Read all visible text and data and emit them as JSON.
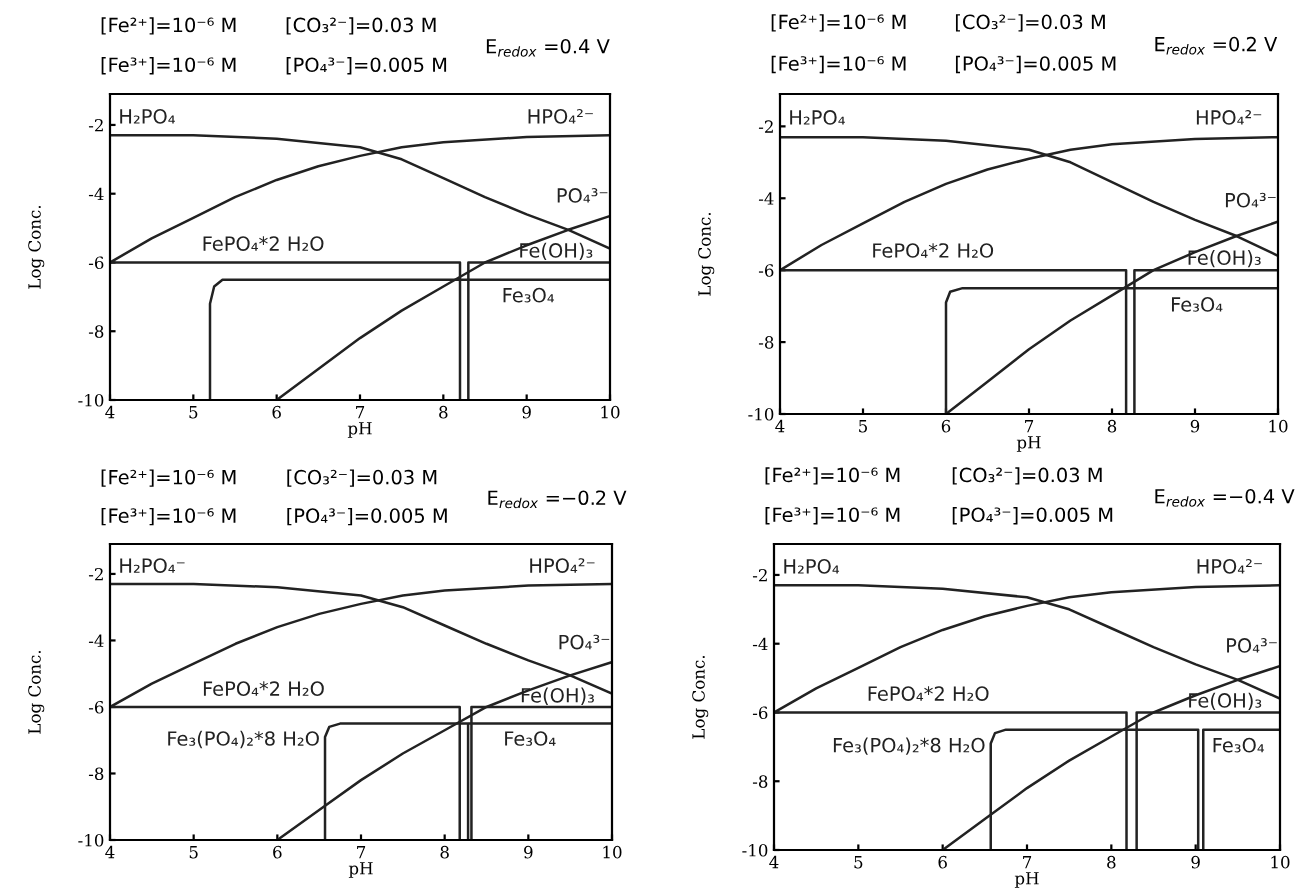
{
  "chart_data": [
    {
      "type": "line",
      "xlabel": "pH",
      "ylabel": "Log Conc.",
      "xlim": [
        4,
        10
      ],
      "ylim": [
        -10,
        -1.1
      ],
      "xticks": [
        4,
        5,
        6,
        7,
        8,
        9,
        10
      ],
      "yticks": [
        -10,
        -8,
        -6,
        -4,
        -2
      ],
      "series": [
        {
          "name": "H₂PO₄",
          "color": "#222222",
          "x": [
            4,
            5,
            6,
            7,
            7.5,
            8,
            8.5,
            9,
            9.5,
            10
          ],
          "values": [
            -2.3,
            -2.3,
            -2.4,
            -2.65,
            -3.0,
            -3.55,
            -4.1,
            -4.6,
            -5.05,
            -5.6
          ]
        },
        {
          "name": "HPO₄²⁻",
          "color": "#222222",
          "x": [
            4,
            4.5,
            5,
            5.5,
            6,
            6.5,
            7,
            7.5,
            8,
            9,
            10
          ],
          "values": [
            -6.0,
            -5.3,
            -4.7,
            -4.1,
            -3.6,
            -3.2,
            -2.9,
            -2.65,
            -2.5,
            -2.35,
            -2.3
          ]
        },
        {
          "name": "PO₄³⁻",
          "color": "#222222",
          "x": [
            6,
            6.5,
            7,
            7.5,
            8,
            8.5,
            9,
            9.5,
            10
          ],
          "values": [
            -10,
            -9.1,
            -8.2,
            -7.4,
            -6.7,
            -6.0,
            -5.5,
            -5.05,
            -4.65
          ]
        },
        {
          "name": "FePO₄*2 H₂O",
          "color": "#222222",
          "x": [
            4,
            8.2,
            8.2
          ],
          "values": [
            -6,
            -6,
            -10
          ]
        },
        {
          "name": "Fe(OH)₃",
          "color": "#222222",
          "x": [
            8.3,
            8.3,
            10
          ],
          "values": [
            -10,
            -6,
            -6
          ]
        },
        {
          "name": "Fe₃O₄",
          "color": "#222222",
          "x": [
            5.2,
            5.2,
            5.25,
            5.35,
            10
          ],
          "values": [
            -10,
            -7.2,
            -6.7,
            -6.5,
            -6.5
          ]
        }
      ],
      "annotations": [
        "[Fe²⁺]=10⁻⁶ M",
        "[Fe³⁺]=10⁻⁶ M",
        "[CO₃²⁻]=0.03 M",
        "[PO₄³⁻]=0.005 M",
        "E$_{redox}$ =0.4 V"
      ]
    },
    {
      "type": "line",
      "xlabel": "pH",
      "ylabel": "Log Conc.",
      "xlim": [
        4,
        10
      ],
      "ylim": [
        -10,
        -1.1
      ],
      "xticks": [
        4,
        5,
        6,
        7,
        8,
        9,
        10
      ],
      "yticks": [
        -10,
        -8,
        -6,
        -4,
        -2
      ],
      "series": [
        {
          "name": "H₂PO₄",
          "color": "#222222",
          "x": [
            4,
            5,
            6,
            7,
            7.5,
            8,
            8.5,
            9,
            9.5,
            10
          ],
          "values": [
            -2.3,
            -2.3,
            -2.4,
            -2.65,
            -3.0,
            -3.55,
            -4.1,
            -4.6,
            -5.05,
            -5.6
          ]
        },
        {
          "name": "HPO₄²⁻",
          "color": "#222222",
          "x": [
            4,
            4.5,
            5,
            5.5,
            6,
            6.5,
            7,
            7.5,
            8,
            9,
            10
          ],
          "values": [
            -6.0,
            -5.3,
            -4.7,
            -4.1,
            -3.6,
            -3.2,
            -2.9,
            -2.65,
            -2.5,
            -2.35,
            -2.3
          ]
        },
        {
          "name": "PO₄³⁻",
          "color": "#222222",
          "x": [
            6,
            6.5,
            7,
            7.5,
            8,
            8.5,
            9,
            9.5,
            10
          ],
          "values": [
            -10,
            -9.1,
            -8.2,
            -7.4,
            -6.7,
            -6.0,
            -5.5,
            -5.05,
            -4.65
          ]
        },
        {
          "name": "FePO₄*2 H₂O",
          "color": "#222222",
          "x": [
            4,
            8.17,
            8.17
          ],
          "values": [
            -6,
            -6,
            -10
          ]
        },
        {
          "name": "Fe(OH)₃",
          "color": "#222222",
          "x": [
            8.27,
            8.27,
            10
          ],
          "values": [
            -10,
            -6,
            -6
          ]
        },
        {
          "name": "Fe₃O₄",
          "color": "#222222",
          "x": [
            6.0,
            6.0,
            6.05,
            6.2,
            10
          ],
          "values": [
            -10,
            -6.9,
            -6.6,
            -6.5,
            -6.5
          ]
        }
      ],
      "annotations": [
        "[Fe²⁺]=10⁻⁶ M",
        "[Fe³⁺]=10⁻⁶ M",
        "[CO₃²⁻]=0.03 M",
        "[PO₄³⁻]=0.005 M",
        "E$_{redox}$ =0.2 V"
      ]
    },
    {
      "type": "line",
      "xlabel": "pH",
      "ylabel": "Log Conc.",
      "xlim": [
        4,
        10
      ],
      "ylim": [
        -10,
        -1.1
      ],
      "xticks": [
        4,
        5,
        6,
        7,
        8,
        9,
        10
      ],
      "yticks": [
        -10,
        -8,
        -6,
        -4,
        -2
      ],
      "series": [
        {
          "name": "H₂PO₄⁻",
          "color": "#222222",
          "x": [
            4,
            5,
            6,
            7,
            7.5,
            8,
            8.5,
            9,
            9.5,
            10
          ],
          "values": [
            -2.3,
            -2.3,
            -2.4,
            -2.65,
            -3.0,
            -3.55,
            -4.1,
            -4.6,
            -5.05,
            -5.6
          ]
        },
        {
          "name": "HPO₄²⁻",
          "color": "#222222",
          "x": [
            4,
            4.5,
            5,
            5.5,
            6,
            6.5,
            7,
            7.5,
            8,
            9,
            10
          ],
          "values": [
            -6.0,
            -5.3,
            -4.7,
            -4.1,
            -3.6,
            -3.2,
            -2.9,
            -2.65,
            -2.5,
            -2.35,
            -2.3
          ]
        },
        {
          "name": "PO₄³⁻",
          "color": "#222222",
          "x": [
            6,
            6.5,
            7,
            7.5,
            8,
            8.5,
            9,
            9.5,
            10
          ],
          "values": [
            -10,
            -9.1,
            -8.2,
            -7.4,
            -6.7,
            -6.0,
            -5.5,
            -5.05,
            -4.65
          ]
        },
        {
          "name": "FePO₄*2 H₂O",
          "color": "#222222",
          "x": [
            4,
            8.18,
            8.18
          ],
          "values": [
            -6,
            -6,
            -10
          ]
        },
        {
          "name": "Fe(OH)₃",
          "color": "#222222",
          "x": [
            8.32,
            8.32,
            10
          ],
          "values": [
            -10,
            -6,
            -6
          ]
        },
        {
          "name": "Fe₃O₄",
          "color": "#222222",
          "x": [
            8.3,
            10
          ],
          "values": [
            -6.5,
            -6.5
          ]
        },
        {
          "name": "Fe₃(PO₄)₂*8 H₂O",
          "color": "#222222",
          "x": [
            6.57,
            6.57,
            6.62,
            6.75,
            8.28,
            8.28
          ],
          "values": [
            -10,
            -6.9,
            -6.6,
            -6.5,
            -6.5,
            -10
          ]
        }
      ],
      "annotations": [
        "[Fe²⁺]=10⁻⁶ M",
        "[Fe³⁺]=10⁻⁶ M",
        "[CO₃²⁻]=0.03 M",
        "[PO₄³⁻]=0.005 M",
        "E$_{redox}$ =−0.2 V"
      ]
    },
    {
      "type": "line",
      "xlabel": "pH",
      "ylabel": "Log Conc.",
      "xlim": [
        4,
        10
      ],
      "ylim": [
        -10,
        -1.1
      ],
      "xticks": [
        4,
        5,
        6,
        7,
        8,
        9,
        10
      ],
      "yticks": [
        -10,
        -8,
        -6,
        -4,
        -2
      ],
      "series": [
        {
          "name": "H₂PO₄",
          "color": "#222222",
          "x": [
            4,
            5,
            6,
            7,
            7.5,
            8,
            8.5,
            9,
            9.5,
            10
          ],
          "values": [
            -2.3,
            -2.3,
            -2.4,
            -2.65,
            -3.0,
            -3.55,
            -4.1,
            -4.6,
            -5.05,
            -5.6
          ]
        },
        {
          "name": "HPO₄²⁻",
          "color": "#222222",
          "x": [
            4,
            4.5,
            5,
            5.5,
            6,
            6.5,
            7,
            7.5,
            8,
            9,
            10
          ],
          "values": [
            -6.0,
            -5.3,
            -4.7,
            -4.1,
            -3.6,
            -3.2,
            -2.9,
            -2.65,
            -2.5,
            -2.35,
            -2.3
          ]
        },
        {
          "name": "PO₄³⁻",
          "color": "#222222",
          "x": [
            6,
            6.5,
            7,
            7.5,
            8,
            8.5,
            9,
            9.5,
            10
          ],
          "values": [
            -10,
            -9.1,
            -8.2,
            -7.4,
            -6.7,
            -6.0,
            -5.5,
            -5.05,
            -4.65
          ]
        },
        {
          "name": "FePO₄*2 H₂O",
          "color": "#222222",
          "x": [
            4,
            8.18,
            8.18
          ],
          "values": [
            -6,
            -6,
            -10
          ]
        },
        {
          "name": "Fe(OH)₃",
          "color": "#222222",
          "x": [
            8.3,
            8.3,
            10
          ],
          "values": [
            -10,
            -6,
            -6
          ]
        },
        {
          "name": "Fe₃O₄",
          "color": "#222222",
          "x": [
            9.09,
            9.09,
            10
          ],
          "values": [
            -10,
            -6.5,
            -6.5
          ]
        },
        {
          "name": "Fe₃(PO₄)₂*8 H₂O",
          "color": "#222222",
          "x": [
            6.57,
            6.57,
            6.62,
            6.75,
            9.03,
            9.03
          ],
          "values": [
            -10,
            -6.9,
            -6.6,
            -6.5,
            -6.5,
            -10
          ]
        }
      ],
      "annotations": [
        "[Fe²⁺]=10⁻⁶ M",
        "[Fe³⁺]=10⁻⁶ M",
        "[CO₃²⁻]=0.03 M",
        "[PO₄³⁻]=0.005 M",
        "E$_{redox}$ =−0.4 V"
      ]
    }
  ]
}
